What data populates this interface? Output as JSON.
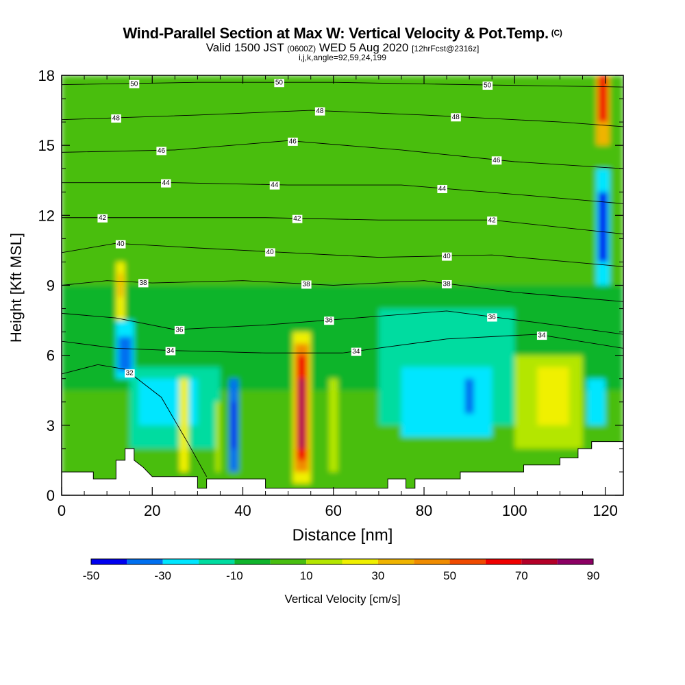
{
  "header": {
    "title": "Wind-Parallel Section at Max W: Vertical Velocity & Pot.Temp.",
    "copyright": "(C)",
    "valid_prefix": "Valid 1500 JST",
    "valid_zulu": "(0600Z)",
    "valid_date": "WED 5 Aug 2020",
    "forecast": "[12hrFcst@2316z]",
    "params": "i,j,k,angle=92,59,24,199"
  },
  "chart_data": {
    "type": "heatmap",
    "title": "Wind-Parallel Section at Max W: Vertical Velocity & Pot.Temp.",
    "xlabel": "Distance [nm]",
    "ylabel": "Height [Kft MSL]",
    "xlim": [
      0,
      124
    ],
    "ylim": [
      0,
      18
    ],
    "x_ticks": [
      "0",
      "20",
      "40",
      "60",
      "80",
      "100",
      "120"
    ],
    "y_ticks": [
      "0",
      "3",
      "6",
      "9",
      "12",
      "15",
      "18"
    ],
    "colorbar": {
      "title": "Vertical Velocity [cm/s]",
      "tick_labels": [
        "-50",
        "-30",
        "-10",
        "10",
        "30",
        "50",
        "70",
        "90"
      ],
      "bounds": [
        -50,
        -40,
        -30,
        -20,
        -10,
        0,
        10,
        20,
        30,
        40,
        50,
        60,
        70,
        80,
        90
      ],
      "colors": [
        "#0000f0",
        "#0070f0",
        "#00e6ff",
        "#00dca0",
        "#10b42c",
        "#48be10",
        "#b4e600",
        "#f0f000",
        "#f0b400",
        "#f08c00",
        "#f04a00",
        "#f00000",
        "#b40028",
        "#8c0064"
      ]
    },
    "terrain_top_kft": [
      [
        0,
        1.0
      ],
      [
        7,
        1.0
      ],
      [
        7,
        0.7
      ],
      [
        12,
        0.7
      ],
      [
        12,
        1.5
      ],
      [
        14,
        1.5
      ],
      [
        14,
        2.0
      ],
      [
        16,
        2.0
      ],
      [
        16,
        1.5
      ],
      [
        18,
        1.2
      ],
      [
        20,
        0.8
      ],
      [
        30,
        0.8
      ],
      [
        30,
        0.3
      ],
      [
        32,
        0.3
      ],
      [
        32,
        0.7
      ],
      [
        45,
        0.7
      ],
      [
        45,
        0.3
      ],
      [
        72,
        0.3
      ],
      [
        72,
        0.7
      ],
      [
        76,
        0.7
      ],
      [
        76,
        0.3
      ],
      [
        78,
        0.3
      ],
      [
        78,
        0.7
      ],
      [
        88,
        0.7
      ],
      [
        88,
        1.0
      ],
      [
        102,
        1.0
      ],
      [
        102,
        1.3
      ],
      [
        110,
        1.3
      ],
      [
        110,
        1.6
      ],
      [
        114,
        1.6
      ],
      [
        114,
        2.0
      ],
      [
        117,
        2.0
      ],
      [
        117,
        2.3
      ],
      [
        124,
        2.3
      ]
    ],
    "theta_label_values": [
      "50",
      "48",
      "46",
      "44",
      "42",
      "40",
      "38",
      "36",
      "34",
      "32"
    ],
    "theta_contours": [
      {
        "value": "50",
        "points": [
          [
            0,
            17.6
          ],
          [
            30,
            17.7
          ],
          [
            60,
            17.7
          ],
          [
            90,
            17.6
          ],
          [
            124,
            17.5
          ]
        ],
        "labels_at": [
          16,
          48,
          94
        ]
      },
      {
        "value": "48",
        "points": [
          [
            0,
            16.1
          ],
          [
            30,
            16.3
          ],
          [
            55,
            16.5
          ],
          [
            80,
            16.3
          ],
          [
            110,
            16.0
          ],
          [
            124,
            15.8
          ]
        ],
        "labels_at": [
          12,
          57,
          87
        ]
      },
      {
        "value": "46",
        "points": [
          [
            0,
            14.7
          ],
          [
            25,
            14.8
          ],
          [
            50,
            15.2
          ],
          [
            75,
            14.8
          ],
          [
            100,
            14.3
          ],
          [
            124,
            14.0
          ]
        ],
        "labels_at": [
          22,
          51,
          96
        ]
      },
      {
        "value": "44",
        "points": [
          [
            0,
            13.4
          ],
          [
            25,
            13.4
          ],
          [
            50,
            13.3
          ],
          [
            75,
            13.3
          ],
          [
            100,
            12.9
          ],
          [
            124,
            12.5
          ]
        ],
        "labels_at": [
          23,
          47,
          84
        ]
      },
      {
        "value": "42",
        "points": [
          [
            0,
            11.9
          ],
          [
            20,
            11.9
          ],
          [
            45,
            11.9
          ],
          [
            70,
            11.8
          ],
          [
            95,
            11.8
          ],
          [
            124,
            11.2
          ]
        ],
        "labels_at": [
          9,
          52,
          95
        ]
      },
      {
        "value": "40",
        "points": [
          [
            0,
            10.4
          ],
          [
            12,
            10.8
          ],
          [
            30,
            10.6
          ],
          [
            50,
            10.4
          ],
          [
            70,
            10.2
          ],
          [
            95,
            10.3
          ],
          [
            124,
            9.8
          ]
        ],
        "labels_at": [
          13,
          46,
          85
        ]
      },
      {
        "value": "38",
        "points": [
          [
            0,
            9.0
          ],
          [
            10,
            9.2
          ],
          [
            20,
            9.1
          ],
          [
            40,
            9.2
          ],
          [
            60,
            9.0
          ],
          [
            80,
            9.2
          ],
          [
            100,
            8.7
          ],
          [
            124,
            8.3
          ]
        ],
        "labels_at": [
          18,
          54,
          85
        ]
      },
      {
        "value": "36",
        "points": [
          [
            0,
            7.8
          ],
          [
            12,
            7.6
          ],
          [
            25,
            7.1
          ],
          [
            45,
            7.3
          ],
          [
            65,
            7.6
          ],
          [
            85,
            7.9
          ],
          [
            105,
            7.4
          ],
          [
            124,
            6.9
          ]
        ],
        "labels_at": [
          26,
          59,
          95
        ]
      },
      {
        "value": "34",
        "points": [
          [
            0,
            6.6
          ],
          [
            12,
            6.3
          ],
          [
            25,
            6.2
          ],
          [
            45,
            6.1
          ],
          [
            62,
            6.1
          ],
          [
            85,
            6.7
          ],
          [
            105,
            6.9
          ],
          [
            124,
            6.3
          ]
        ],
        "labels_at": [
          24,
          65,
          106
        ]
      },
      {
        "value": "32",
        "points": [
          [
            0,
            5.2
          ],
          [
            8,
            5.6
          ],
          [
            14,
            5.4
          ],
          [
            22,
            4.2
          ],
          [
            28,
            2.2
          ],
          [
            32,
            0.8
          ]
        ],
        "labels_at": [
          15
        ]
      }
    ],
    "w_cells": [
      {
        "x": [
          0,
          124
        ],
        "y": [
          0,
          18
        ],
        "w": 5
      },
      {
        "x": [
          0,
          124
        ],
        "y": [
          12.5,
          18
        ],
        "w": 3
      },
      {
        "x": [
          0,
          124
        ],
        "y": [
          4.5,
          9
        ],
        "w": -5
      },
      {
        "x": [
          70,
          100
        ],
        "y": [
          3,
          8
        ],
        "w": -15
      },
      {
        "x": [
          75,
          95
        ],
        "y": [
          2.5,
          5.5
        ],
        "w": -25
      },
      {
        "x": [
          15,
          35
        ],
        "y": [
          2,
          5.5
        ],
        "w": -15
      },
      {
        "x": [
          17,
          30
        ],
        "y": [
          3,
          5
        ],
        "w": -25
      },
      {
        "x": [
          12,
          16
        ],
        "y": [
          5,
          7.5
        ],
        "w": -25
      },
      {
        "x": [
          12.5,
          15.5
        ],
        "y": [
          5.3,
          6.8
        ],
        "w": -35
      },
      {
        "x": [
          12,
          14
        ],
        "y": [
          7.5,
          10
        ],
        "w": 25
      },
      {
        "x": [
          12.5,
          13.5
        ],
        "y": [
          8.5,
          9.5
        ],
        "w": 35
      },
      {
        "x": [
          37,
          39
        ],
        "y": [
          1,
          5
        ],
        "w": -35
      },
      {
        "x": [
          37.5,
          38.5
        ],
        "y": [
          2,
          4
        ],
        "w": -45
      },
      {
        "x": [
          51,
          55
        ],
        "y": [
          0.5,
          7
        ],
        "w": 25
      },
      {
        "x": [
          51.5,
          54.5
        ],
        "y": [
          1,
          6.5
        ],
        "w": 45
      },
      {
        "x": [
          52,
          54
        ],
        "y": [
          1.5,
          6
        ],
        "w": 65
      },
      {
        "x": [
          52.5,
          53.5
        ],
        "y": [
          2,
          5
        ],
        "w": 85
      },
      {
        "x": [
          89,
          91
        ],
        "y": [
          3.5,
          5
        ],
        "w": -35
      },
      {
        "x": [
          100,
          115
        ],
        "y": [
          2,
          6
        ],
        "w": 15
      },
      {
        "x": [
          105,
          112
        ],
        "y": [
          3,
          5.5
        ],
        "w": 25
      },
      {
        "x": [
          118,
          121
        ],
        "y": [
          9,
          14
        ],
        "w": -25
      },
      {
        "x": [
          118.5,
          120.5
        ],
        "y": [
          10,
          13
        ],
        "w": -45
      },
      {
        "x": [
          118,
          121
        ],
        "y": [
          15,
          18
        ],
        "w": 35
      },
      {
        "x": [
          118.5,
          120.5
        ],
        "y": [
          16,
          18
        ],
        "w": 65
      },
      {
        "x": [
          116,
          120
        ],
        "y": [
          3,
          5
        ],
        "w": -25
      },
      {
        "x": [
          59,
          61
        ],
        "y": [
          1,
          5
        ],
        "w": 15
      },
      {
        "x": [
          26,
          28
        ],
        "y": [
          1,
          5
        ],
        "w": 25
      },
      {
        "x": [
          34,
          35
        ],
        "y": [
          1,
          4
        ],
        "w": 15
      }
    ]
  }
}
